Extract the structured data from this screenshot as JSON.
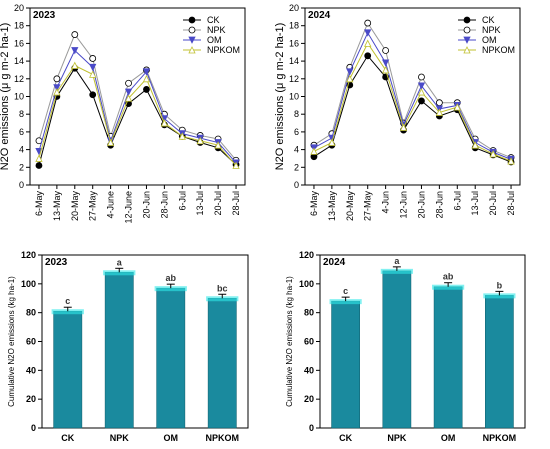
{
  "chart_data": [
    {
      "type": "line",
      "annotation": "2023",
      "ylabel": "N2O emissions (μ g m-2 ha-1)",
      "categories": [
        "6-May",
        "13-May",
        "20-May",
        "27-May",
        "4-June",
        "12-June",
        "20-Jun",
        "28-Jun",
        "6-Jul",
        "13-Jul",
        "20-Jul",
        "28-Jul"
      ],
      "ylim": [
        0,
        20
      ],
      "yticks": [
        0,
        2,
        4,
        6,
        8,
        10,
        12,
        14,
        16,
        18,
        20
      ],
      "legend": "upper right",
      "series": [
        {
          "name": "CK",
          "color": "#000000",
          "marker": "circle-filled",
          "values": [
            2.2,
            10,
            13.2,
            10.2,
            4.5,
            9.2,
            10.8,
            6.8,
            5.5,
            4.8,
            4.2,
            2.3
          ]
        },
        {
          "name": "NPK",
          "color": "#9a9a9a",
          "marker": "circle-open",
          "values": [
            5,
            12,
            17,
            14.3,
            5.5,
            11.5,
            13,
            8,
            6.2,
            5.6,
            5.2,
            2.8
          ]
        },
        {
          "name": "OM",
          "color": "#4a4ac8",
          "marker": "triangle-down-filled",
          "values": [
            3.8,
            11,
            15.2,
            13.3,
            5,
            10.5,
            12.8,
            7.5,
            5.8,
            5.3,
            4.8,
            2.5
          ]
        },
        {
          "name": "NPKOM",
          "color": "#c0c030",
          "marker": "triangle-up-open",
          "values": [
            3,
            10.5,
            13.5,
            12.5,
            4.8,
            9.8,
            12,
            7,
            5.5,
            5,
            4.5,
            2.2
          ]
        }
      ]
    },
    {
      "type": "line",
      "annotation": "2024",
      "ylabel": "N2O emissions (μ g m-2 ha-1)",
      "categories": [
        "6-May",
        "13-May",
        "20-May",
        "27-May",
        "4-Jun",
        "12-Jun",
        "20-Jun",
        "28-Jun",
        "6-Jul",
        "13-Jul",
        "20-Jul",
        "28-Jul"
      ],
      "ylim": [
        0,
        20
      ],
      "yticks": [
        0,
        2,
        4,
        6,
        8,
        10,
        12,
        14,
        16,
        18,
        20
      ],
      "legend": "upper right",
      "series": [
        {
          "name": "CK",
          "color": "#000000",
          "marker": "circle-filled",
          "values": [
            3.2,
            4.5,
            11.3,
            14.6,
            12.2,
            6.2,
            9.5,
            7.8,
            8.5,
            4.2,
            3.4,
            2.6
          ]
        },
        {
          "name": "NPK",
          "color": "#9a9a9a",
          "marker": "circle-open",
          "values": [
            4.5,
            5.8,
            13.3,
            18.3,
            15.2,
            7,
            12.2,
            9.3,
            9.3,
            5.2,
            3.9,
            3.1
          ]
        },
        {
          "name": "OM",
          "color": "#4a4ac8",
          "marker": "triangle-down-filled",
          "values": [
            4.2,
            5.3,
            12.8,
            17.2,
            13.8,
            6.8,
            11.2,
            8.6,
            9,
            4.8,
            3.7,
            2.9
          ]
        },
        {
          "name": "NPKOM",
          "color": "#c0c030",
          "marker": "triangle-up-open",
          "values": [
            3.8,
            4.8,
            12,
            16,
            13,
            6.5,
            10.5,
            8.2,
            8.8,
            4.5,
            3.5,
            2.7
          ]
        }
      ]
    },
    {
      "type": "bar",
      "annotation": "2023",
      "ylabel": "Cumulative N2O emissions (kg ha-1)",
      "categories": [
        "CK",
        "NPK",
        "OM",
        "NPKOM"
      ],
      "values": [
        81,
        108,
        97,
        90
      ],
      "letters": [
        "c",
        "a",
        "ab",
        "bc"
      ],
      "color": "#1a8a9e",
      "ylim": [
        0,
        120
      ],
      "yticks": [
        0,
        20,
        40,
        60,
        80,
        100,
        120
      ]
    },
    {
      "type": "bar",
      "annotation": "2024",
      "ylabel": "Cumulative N2O emissions (kg ha-1)",
      "categories": [
        "CK",
        "NPK",
        "OM",
        "NPKOM"
      ],
      "values": [
        88,
        109,
        98,
        92
      ],
      "letters": [
        "c",
        "a",
        "ab",
        "b"
      ],
      "color": "#1a8a9e",
      "ylim": [
        0,
        120
      ],
      "yticks": [
        0,
        20,
        40,
        60,
        80,
        100,
        120
      ]
    }
  ]
}
